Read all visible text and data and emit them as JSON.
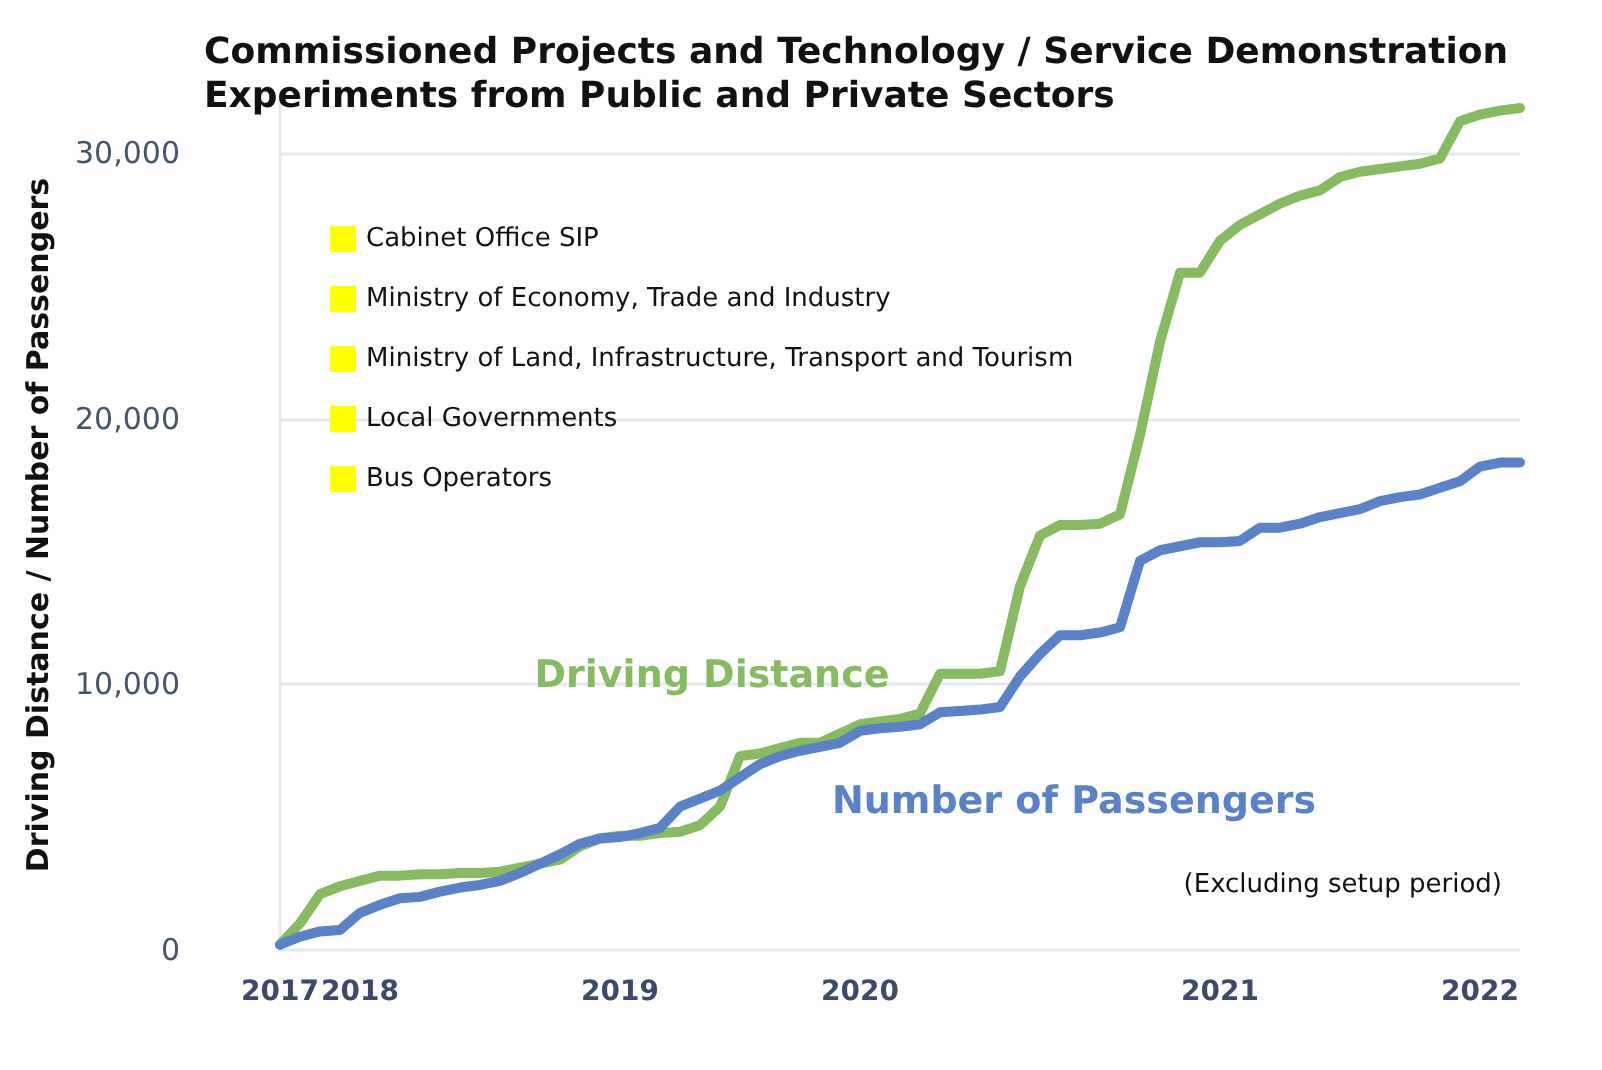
{
  "chart_data": {
    "type": "line",
    "title": "Commissioned Projects and Technology / Service Demonstration Experiments from Public and Private Sectors",
    "ylabel": "Driving Distance / Number of Passengers",
    "categories": [
      "2017",
      null,
      null,
      null,
      "2018",
      null,
      null,
      null,
      null,
      null,
      null,
      null,
      null,
      null,
      null,
      null,
      null,
      "2019",
      null,
      null,
      null,
      null,
      null,
      null,
      null,
      null,
      null,
      null,
      null,
      "2020",
      null,
      null,
      null,
      null,
      null,
      null,
      null,
      null,
      null,
      null,
      null,
      null,
      null,
      null,
      null,
      null,
      null,
      "2021",
      null,
      null,
      null,
      null,
      null,
      null,
      null,
      null,
      null,
      null,
      null,
      null,
      "2022",
      null,
      null
    ],
    "series": [
      {
        "name": "Driving Distance",
        "color": "#86bb5f",
        "values": [
          200,
          1000,
          2100,
          2400,
          2600,
          2800,
          2800,
          2850,
          2850,
          2900,
          2900,
          2950,
          3100,
          3250,
          3400,
          3900,
          4200,
          4300,
          4300,
          4400,
          4450,
          4700,
          5400,
          7300,
          7400,
          7600,
          7800,
          7800,
          8150,
          8500,
          8600,
          8700,
          8900,
          10400,
          10400,
          10400,
          10500,
          13700,
          15600,
          16000,
          16000,
          16050,
          16400,
          19400,
          22900,
          25500,
          25500,
          26700,
          27300,
          27700,
          28100,
          28400,
          28600,
          29100,
          29300,
          29400,
          29500,
          29600,
          29800,
          31200,
          31450,
          31600,
          31700
        ]
      },
      {
        "name": "Number of Passengers",
        "color": "#5a82c8",
        "values": [
          200,
          500,
          700,
          750,
          1400,
          1700,
          1950,
          2000,
          2200,
          2350,
          2450,
          2600,
          2900,
          3250,
          3600,
          4000,
          4200,
          4250,
          4400,
          4600,
          5400,
          5700,
          6000,
          6500,
          7000,
          7300,
          7500,
          7650,
          7800,
          8250,
          8350,
          8400,
          8500,
          8950,
          9000,
          9050,
          9150,
          10300,
          11150,
          11850,
          11850,
          11950,
          12150,
          14650,
          15050,
          15200,
          15350,
          15350,
          15400,
          15900,
          15900,
          16050,
          16300,
          16450,
          16600,
          16900,
          17050,
          17150,
          17400,
          17650,
          18200,
          18350,
          18350
        ]
      },
      {
        "name": "Cabinet Office SIP",
        "color": "#ffff00",
        "values": [
          null,
          null,
          null,
          null,
          null,
          null,
          null,
          null,
          null,
          null,
          null,
          null,
          null,
          null,
          null,
          null,
          null,
          null,
          null,
          null,
          null,
          null,
          null,
          null,
          null,
          null,
          null,
          null,
          null,
          null,
          null,
          null,
          null,
          null,
          null,
          null,
          null,
          null,
          null,
          null,
          null,
          null,
          null,
          null,
          null,
          null,
          null,
          null,
          null,
          null,
          null,
          null,
          null,
          null,
          null,
          null,
          null,
          null,
          null,
          null,
          null,
          null,
          null
        ]
      },
      {
        "name": "Ministry of Economy, Trade and Industry",
        "color": "#ffff00",
        "values": [
          null,
          null,
          null,
          null,
          null,
          null,
          null,
          null,
          null,
          null,
          null,
          null,
          null,
          null,
          null,
          null,
          null,
          null,
          null,
          null,
          null,
          null,
          null,
          null,
          null,
          null,
          null,
          null,
          null,
          null,
          null,
          null,
          null,
          null,
          null,
          null,
          null,
          null,
          null,
          null,
          null,
          null,
          null,
          null,
          null,
          null,
          null,
          null,
          null,
          null,
          null,
          null,
          null,
          null,
          null,
          null,
          null,
          null,
          null,
          null,
          null,
          null,
          null
        ]
      },
      {
        "name": "Ministry of Land, Infrastructure, Transport and Tourism",
        "color": "#ffff00",
        "values": [
          null,
          null,
          null,
          null,
          null,
          null,
          null,
          null,
          null,
          null,
          null,
          null,
          null,
          null,
          null,
          null,
          null,
          null,
          null,
          null,
          null,
          null,
          null,
          null,
          null,
          null,
          null,
          null,
          null,
          null,
          null,
          null,
          null,
          null,
          null,
          null,
          null,
          null,
          null,
          null,
          null,
          null,
          null,
          null,
          null,
          null,
          null,
          null,
          null,
          null,
          null,
          null,
          null,
          null,
          null,
          null,
          null,
          null,
          null,
          null,
          null,
          null,
          null
        ]
      },
      {
        "name": "Local Governments",
        "color": "#ffff00",
        "values": [
          null,
          null,
          null,
          null,
          null,
          null,
          null,
          null,
          null,
          null,
          null,
          null,
          null,
          null,
          null,
          null,
          null,
          null,
          null,
          null,
          null,
          null,
          null,
          null,
          null,
          null,
          null,
          null,
          null,
          null,
          null,
          null,
          null,
          null,
          null,
          null,
          null,
          null,
          null,
          null,
          null,
          null,
          null,
          null,
          null,
          null,
          null,
          null,
          null,
          null,
          null,
          null,
          null,
          null,
          null,
          null,
          null,
          null,
          null,
          null,
          null,
          null,
          null
        ]
      },
      {
        "name": "Bus Operators",
        "color": "#ffff00",
        "values": [
          null,
          null,
          null,
          null,
          null,
          null,
          null,
          null,
          null,
          null,
          null,
          null,
          null,
          null,
          null,
          null,
          null,
          null,
          null,
          null,
          null,
          null,
          null,
          null,
          null,
          null,
          null,
          null,
          null,
          null,
          null,
          null,
          null,
          null,
          null,
          null,
          null,
          null,
          null,
          null,
          null,
          null,
          null,
          null,
          null,
          null,
          null,
          null,
          null,
          null,
          null,
          null,
          null,
          null,
          null,
          null,
          null,
          null,
          null,
          null,
          null,
          null,
          null
        ]
      }
    ],
    "ylim": [
      0,
      32000
    ],
    "yticks": [
      {
        "value": 0,
        "label": "0"
      },
      {
        "value": 10000,
        "label": "10,000"
      },
      {
        "value": 20000,
        "label": "20,000"
      },
      {
        "value": 30000,
        "label": "30,000"
      }
    ],
    "grid": "y",
    "legend": "top left",
    "marker": "none",
    "line_style": "solid",
    "annotations": [
      "(Excluding setup period)"
    ]
  }
}
